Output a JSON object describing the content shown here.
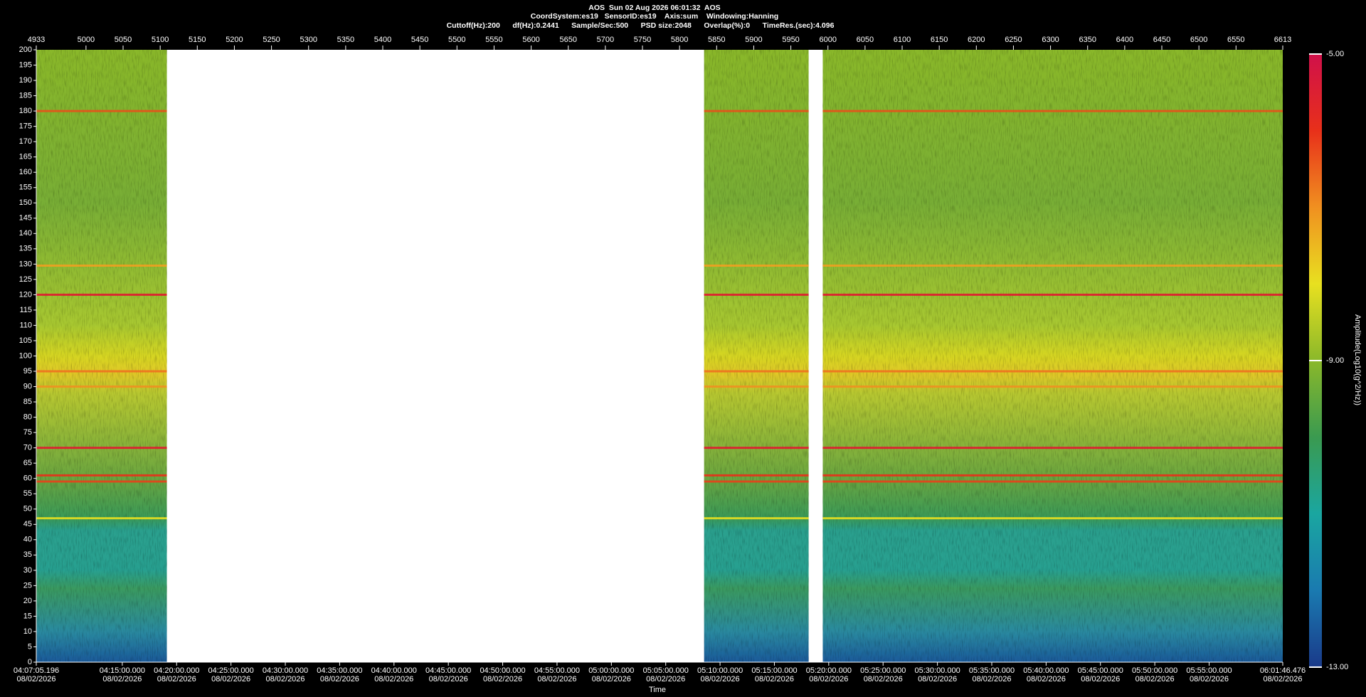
{
  "chart_data": {
    "type": "spectrogram",
    "title": "AOS  Sun 02 Aug 2026 06:01:32  AOS",
    "subtitle": [
      "CoordSystem:es19   SensorID:es19    Axis:sum    Windowing:Hanning",
      "Cuttoff(Hz):200      df(Hz):0.2441      Sample/Sec:500      PSD size:2048      Overlap(%):0      TimeRes.(sec):4.096"
    ],
    "xlim": [
      4933,
      6613
    ],
    "xticks": [
      4933,
      5000,
      5050,
      5100,
      5150,
      5200,
      5250,
      5300,
      5350,
      5400,
      5450,
      5500,
      5550,
      5600,
      5650,
      5700,
      5750,
      5800,
      5850,
      5900,
      5950,
      6000,
      6050,
      6100,
      6150,
      6200,
      6250,
      6300,
      6350,
      6400,
      6450,
      6500,
      6550,
      6613
    ],
    "x2label": "Time",
    "x2lim": [
      14825.196,
      21706.476
    ],
    "x2ticks": [
      {
        "value": 14825.196,
        "label": "04:07:05.196",
        "date": "08/02/2026"
      },
      {
        "value": 15300,
        "label": "04:15:00.000",
        "date": "08/02/2026"
      },
      {
        "value": 15600,
        "label": "04:20:00.000",
        "date": "08/02/2026"
      },
      {
        "value": 15900,
        "label": "04:25:00.000",
        "date": "08/02/2026"
      },
      {
        "value": 16200,
        "label": "04:30:00.000",
        "date": "08/02/2026"
      },
      {
        "value": 16500,
        "label": "04:35:00.000",
        "date": "08/02/2026"
      },
      {
        "value": 16800,
        "label": "04:40:00.000",
        "date": "08/02/2026"
      },
      {
        "value": 17100,
        "label": "04:45:00.000",
        "date": "08/02/2026"
      },
      {
        "value": 17400,
        "label": "04:50:00.000",
        "date": "08/02/2026"
      },
      {
        "value": 17700,
        "label": "04:55:00.000",
        "date": "08/02/2026"
      },
      {
        "value": 18000,
        "label": "05:00:00.000",
        "date": "08/02/2026"
      },
      {
        "value": 18300,
        "label": "05:05:00.000",
        "date": "08/02/2026"
      },
      {
        "value": 18600,
        "label": "05:10:00.000",
        "date": "08/02/2026"
      },
      {
        "value": 18900,
        "label": "05:15:00.000",
        "date": "08/02/2026"
      },
      {
        "value": 19200,
        "label": "05:20:00.000",
        "date": "08/02/2026"
      },
      {
        "value": 19500,
        "label": "05:25:00.000",
        "date": "08/02/2026"
      },
      {
        "value": 19800,
        "label": "05:30:00.000",
        "date": "08/02/2026"
      },
      {
        "value": 20100,
        "label": "05:35:00.000",
        "date": "08/02/2026"
      },
      {
        "value": 20400,
        "label": "05:40:00.000",
        "date": "08/02/2026"
      },
      {
        "value": 20700,
        "label": "05:45:00.000",
        "date": "08/02/2026"
      },
      {
        "value": 21000,
        "label": "05:50:00.000",
        "date": "08/02/2026"
      },
      {
        "value": 21300,
        "label": "05:55:00.000",
        "date": "08/02/2026"
      },
      {
        "value": 21706.476,
        "label": "06:01:46.476",
        "date": "08/02/2026"
      }
    ],
    "ylim": [
      0,
      200
    ],
    "yticks": [
      0,
      5,
      10,
      15,
      20,
      25,
      30,
      35,
      40,
      45,
      50,
      55,
      60,
      65,
      70,
      75,
      80,
      85,
      90,
      95,
      100,
      105,
      110,
      115,
      120,
      125,
      130,
      135,
      140,
      145,
      150,
      155,
      160,
      165,
      170,
      175,
      180,
      185,
      190,
      195,
      200
    ],
    "segments": [
      [
        4933,
        5109
      ],
      [
        5833,
        5974
      ],
      [
        5993,
        6613
      ]
    ],
    "tones": [
      {
        "freq": 180,
        "color": "#e8501a"
      },
      {
        "freq": 129.5,
        "color": "#f0a020"
      },
      {
        "freq": 120,
        "color": "#e01a30"
      },
      {
        "freq": 95,
        "color": "#f07020"
      },
      {
        "freq": 90,
        "color": "#f09020"
      },
      {
        "freq": 70,
        "color": "#e01a30"
      },
      {
        "freq": 61,
        "color": "#e8301a"
      },
      {
        "freq": 59,
        "color": "#e8401a"
      },
      {
        "freq": 47,
        "color": "#e8e020"
      }
    ],
    "colorbar": {
      "label": "Amplitude(Log10(g^2/Hz))",
      "lim": [
        -13,
        -5
      ],
      "ticks": [
        {
          "value": -5,
          "label": "-5.00"
        },
        {
          "value": -9,
          "label": "-9.00"
        },
        {
          "value": -13,
          "label": "-13.00"
        }
      ],
      "colors": [
        "#1a3a8a",
        "#1a7ab0",
        "#1aa6a0",
        "#3a9a50",
        "#8ab82a",
        "#e8e020",
        "#f09020",
        "#e8301a",
        "#d0104a"
      ]
    }
  }
}
